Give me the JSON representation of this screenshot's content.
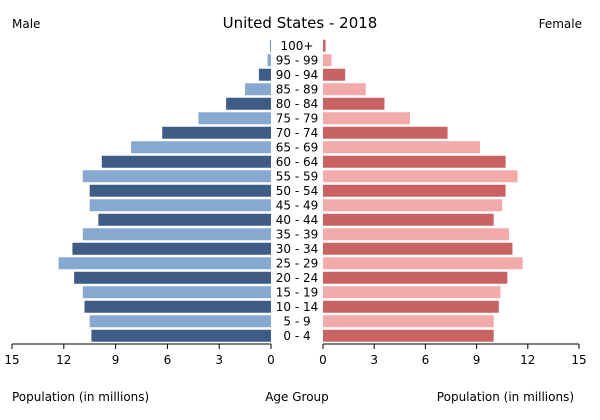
{
  "chart_data": {
    "type": "bar",
    "title": "United States - 2018",
    "left_label": "Male",
    "right_label": "Female",
    "age_groups": [
      "0 - 4",
      "5 - 9",
      "10 - 14",
      "15 - 19",
      "20 - 24",
      "25 - 29",
      "30 - 34",
      "35 - 39",
      "40 - 44",
      "45 - 49",
      "50 - 54",
      "55 - 59",
      "60 - 64",
      "65 - 69",
      "70 - 74",
      "75 - 79",
      "80 - 84",
      "85 - 89",
      "90 - 94",
      "95 - 99",
      "100+"
    ],
    "series": [
      {
        "name": "Male",
        "values": [
          10.4,
          10.5,
          10.8,
          10.9,
          11.4,
          12.3,
          11.5,
          10.9,
          10.0,
          10.5,
          10.5,
          10.9,
          9.8,
          8.1,
          6.3,
          4.2,
          2.6,
          1.5,
          0.7,
          0.2,
          0.04
        ]
      },
      {
        "name": "Female",
        "values": [
          10.0,
          10.0,
          10.3,
          10.4,
          10.8,
          11.7,
          11.1,
          10.9,
          10.0,
          10.5,
          10.7,
          11.4,
          10.7,
          9.2,
          7.3,
          5.1,
          3.6,
          2.5,
          1.3,
          0.5,
          0.15
        ]
      }
    ],
    "x_ticks_male": [
      "15",
      "12",
      "9",
      "6",
      "3",
      "0"
    ],
    "x_ticks_female": [
      "0",
      "3",
      "6",
      "9",
      "12",
      "15"
    ],
    "xlim": [
      0,
      15
    ],
    "x_label_male": "Population (in millions)",
    "x_label_center": "Age Group",
    "x_label_female": "Population (in millions)",
    "colors": {
      "male_dark": "#3e5c85",
      "male_light": "#87a8d0",
      "female_dark": "#c96363",
      "female_light": "#f2aaaa",
      "border": "#ffffff"
    },
    "grid": false
  }
}
